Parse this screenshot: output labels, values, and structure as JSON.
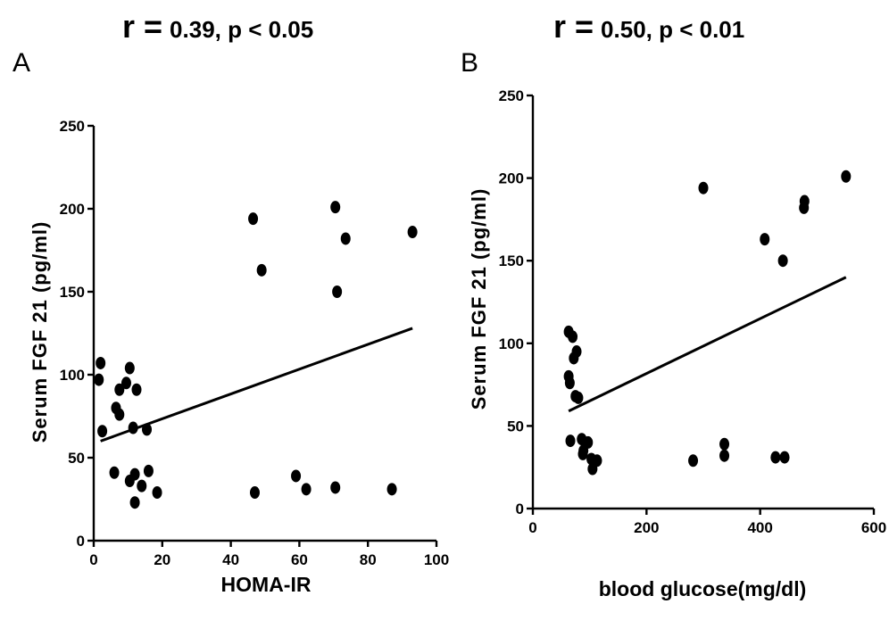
{
  "chart_data": [
    {
      "panel": "A",
      "type": "scatter",
      "stat_r": "r =",
      "stat_rest": "0.39, p < 0.05",
      "xlabel": "HOMA-IR",
      "ylabel": "Serum FGF 21 (pg/ml)",
      "xlim": [
        0,
        100
      ],
      "ylim": [
        0,
        250
      ],
      "xticks": [
        0,
        20,
        40,
        60,
        80,
        100
      ],
      "yticks": [
        0,
        50,
        100,
        150,
        200,
        250
      ],
      "grid": false,
      "points": [
        {
          "x": 2,
          "y": 107
        },
        {
          "x": 1.5,
          "y": 97
        },
        {
          "x": 2.5,
          "y": 66
        },
        {
          "x": 6,
          "y": 41
        },
        {
          "x": 6.5,
          "y": 80
        },
        {
          "x": 7.5,
          "y": 76
        },
        {
          "x": 7.5,
          "y": 91
        },
        {
          "x": 9.5,
          "y": 95
        },
        {
          "x": 10.5,
          "y": 104
        },
        {
          "x": 10.5,
          "y": 36
        },
        {
          "x": 11.5,
          "y": 68
        },
        {
          "x": 12,
          "y": 23
        },
        {
          "x": 12.5,
          "y": 91
        },
        {
          "x": 12,
          "y": 40
        },
        {
          "x": 14,
          "y": 33
        },
        {
          "x": 15.5,
          "y": 67
        },
        {
          "x": 16,
          "y": 42
        },
        {
          "x": 18.5,
          "y": 29
        },
        {
          "x": 46.5,
          "y": 194
        },
        {
          "x": 47,
          "y": 29
        },
        {
          "x": 49,
          "y": 163
        },
        {
          "x": 59,
          "y": 39
        },
        {
          "x": 62,
          "y": 31
        },
        {
          "x": 70.5,
          "y": 201
        },
        {
          "x": 70.5,
          "y": 32
        },
        {
          "x": 71,
          "y": 150
        },
        {
          "x": 73.5,
          "y": 182
        },
        {
          "x": 87,
          "y": 31
        },
        {
          "x": 93,
          "y": 186
        }
      ],
      "fit_line": {
        "x": [
          2,
          93
        ],
        "y": [
          60,
          128
        ]
      }
    },
    {
      "panel": "B",
      "type": "scatter",
      "stat_r": "r =",
      "stat_rest": "0.50, p < 0.01",
      "xlabel": "blood glucose(mg/dl)",
      "ylabel": "Serum FGF 21 (pg/ml)",
      "xlim": [
        0,
        600
      ],
      "ylim": [
        0,
        250
      ],
      "xticks": [
        0,
        200,
        400,
        600
      ],
      "yticks": [
        0,
        50,
        100,
        150,
        200,
        250
      ],
      "grid": false,
      "points": [
        {
          "x": 63,
          "y": 107
        },
        {
          "x": 70,
          "y": 104
        },
        {
          "x": 63,
          "y": 80
        },
        {
          "x": 65,
          "y": 76
        },
        {
          "x": 72,
          "y": 91
        },
        {
          "x": 77,
          "y": 95
        },
        {
          "x": 75,
          "y": 68
        },
        {
          "x": 80,
          "y": 67
        },
        {
          "x": 66,
          "y": 41
        },
        {
          "x": 86,
          "y": 42
        },
        {
          "x": 89,
          "y": 35
        },
        {
          "x": 97,
          "y": 40
        },
        {
          "x": 103,
          "y": 30
        },
        {
          "x": 105,
          "y": 24
        },
        {
          "x": 113,
          "y": 29
        },
        {
          "x": 88,
          "y": 33
        },
        {
          "x": 282,
          "y": 29
        },
        {
          "x": 300,
          "y": 194
        },
        {
          "x": 337,
          "y": 39
        },
        {
          "x": 337,
          "y": 32
        },
        {
          "x": 408,
          "y": 163
        },
        {
          "x": 427,
          "y": 31
        },
        {
          "x": 440,
          "y": 150
        },
        {
          "x": 443,
          "y": 31
        },
        {
          "x": 477,
          "y": 182
        },
        {
          "x": 478,
          "y": 186
        },
        {
          "x": 551,
          "y": 201
        }
      ],
      "fit_line": {
        "x": [
          63,
          551
        ],
        "y": [
          59,
          140
        ]
      }
    }
  ]
}
